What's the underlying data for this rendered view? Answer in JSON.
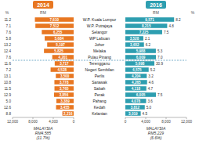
{
  "chart_data": {
    "type": "bar",
    "orientation": "horizontal",
    "data_labels": true,
    "categories": [
      "W.P. Kuala Lumpur",
      "W.P. Putrajaya",
      "Selangor",
      "WP Labuan",
      "Johor",
      "Melaka",
      "Pulau Pinang",
      "Terengganu",
      "Negeri Sembilan",
      "Perlis",
      "Sarawak",
      "Sabah",
      "Perak",
      "Pahang",
      "Kedah",
      "Kelantan"
    ],
    "annotations": [
      "RM",
      "%"
    ],
    "separator_index": 7,
    "xlim": [
      0,
      12000
    ],
    "xticks": [
      0,
      {
        "value": 4000,
        "label": "4,000"
      },
      {
        "value": 8000,
        "label": "8,000"
      },
      {
        "value": 12000,
        "label": "12,000"
      }
    ],
    "series": [
      {
        "name": "2014",
        "color": "#E87722",
        "values": [
          7610,
          7512,
          6255,
          5684,
          5197,
          5825,
          4201,
          3717,
          4528,
          3500,
          3778,
          3765,
          3856,
          3389,
          3455,
          2216
        ],
        "value_labels": [
          "7,610",
          "7,512",
          "6,255",
          "5,684",
          "5,197",
          "5,825",
          "4,201",
          "3,717",
          "4,528",
          "3,500",
          "3,778",
          "3,765",
          "3,856",
          "3,389",
          "3,455",
          "2,216"
        ],
        "pct": [
          11.2,
          7.1,
          7.6,
          5.8,
          13.2,
          12.4,
          7.6,
          11.6,
          7.2,
          13.1,
          10.8,
          11.5,
          12.9,
          5.0,
          12.6,
          8.8
        ],
        "pct_labels": [
          "11.2",
          "7.1",
          "7.6",
          "5.8",
          "13.2",
          "12.4",
          "7.6",
          "11.6",
          "7.2",
          "13.1",
          "10.8",
          "11.5",
          "12.9",
          "5.0",
          "12.6",
          "8.8"
        ],
        "annotation": "MALAYSIA\nRM4,585\n(11.7%)"
      },
      {
        "name": "2016",
        "color": "#2E9EB0",
        "values": [
          9571,
          8215,
          7225,
          3528,
          3652,
          5988,
          6009,
          5698,
          4575,
          4204,
          4265,
          4118,
          6005,
          4078,
          3812,
          3019
        ],
        "value_labels": [
          "9,571",
          "8,215",
          "7,225",
          "3,528",
          "3,652",
          "5,988",
          "6,009",
          "5,698",
          "4,575",
          "4,204",
          "4,265",
          "4,118",
          "6,005",
          "4,078",
          "3,812",
          "3,019"
        ],
        "pct": [
          8.2,
          4.8,
          7.5,
          2.1,
          6.2,
          5.3,
          7.0,
          30.9,
          5.2,
          3.2,
          4.6,
          4.7,
          7.5,
          3.6,
          5.0,
          4.5
        ],
        "pct_labels": [
          "8.2",
          "4.8",
          "7.5",
          "2.1",
          "6.2",
          "5.3",
          "7.0",
          "30.9",
          "5.2",
          "3.2",
          "4.6",
          "4.7",
          "7.5",
          "3.6",
          "5.0",
          "4.5"
        ],
        "annotation": "MALAYSIA\nRM5,229\n(6.6%)"
      }
    ]
  }
}
